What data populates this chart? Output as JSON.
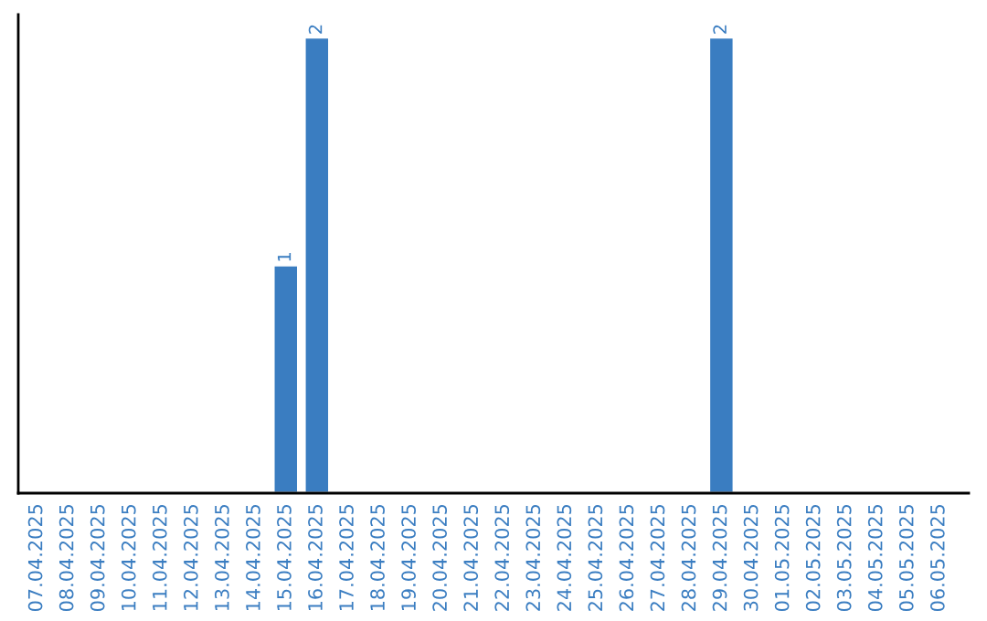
{
  "chart_data": {
    "type": "bar",
    "categories": [
      "07.04.2025",
      "08.04.2025",
      "09.04.2025",
      "10.04.2025",
      "11.04.2025",
      "12.04.2025",
      "13.04.2025",
      "14.04.2025",
      "15.04.2025",
      "16.04.2025",
      "17.04.2025",
      "18.04.2025",
      "19.04.2025",
      "20.04.2025",
      "21.04.2025",
      "22.04.2025",
      "23.04.2025",
      "24.04.2025",
      "25.04.2025",
      "26.04.2025",
      "27.04.2025",
      "28.04.2025",
      "29.04.2025",
      "30.04.2025",
      "01.05.2025",
      "02.05.2025",
      "03.05.2025",
      "04.05.2025",
      "05.05.2025",
      "06.05.2025"
    ],
    "values": [
      null,
      null,
      null,
      null,
      null,
      null,
      null,
      null,
      1,
      2,
      null,
      null,
      null,
      null,
      null,
      null,
      null,
      null,
      null,
      null,
      null,
      null,
      2,
      null,
      null,
      null,
      null,
      null,
      null,
      null
    ],
    "value_labels": [
      null,
      null,
      null,
      null,
      null,
      null,
      null,
      null,
      "1",
      "2",
      null,
      null,
      null,
      null,
      null,
      null,
      null,
      null,
      null,
      null,
      null,
      null,
      "2",
      null,
      null,
      null,
      null,
      null,
      null,
      null
    ],
    "color": "#3a7dc1",
    "tick_labels": "x",
    "grid": false,
    "legend": false
  }
}
